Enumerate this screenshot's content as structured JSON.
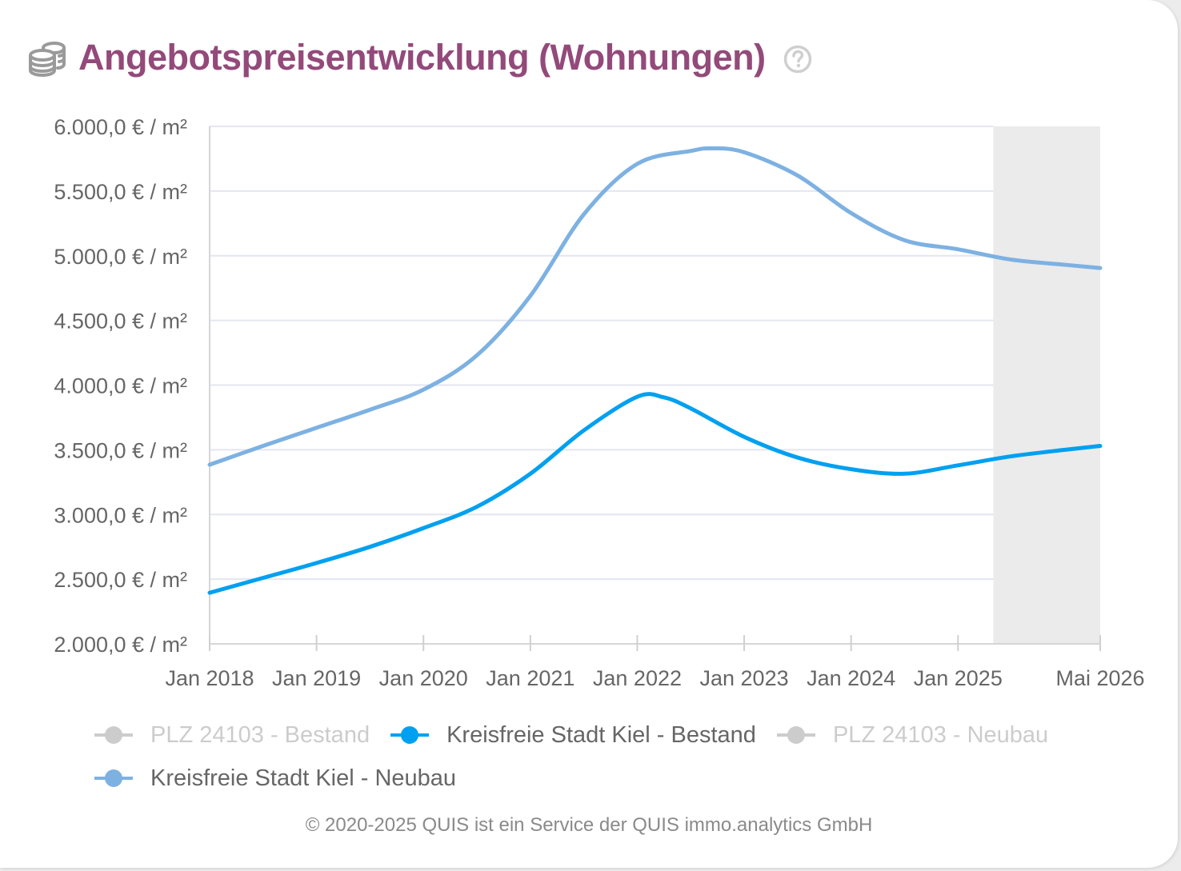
{
  "header": {
    "title": "Angebotspreisentwicklung (Wohnungen)",
    "icon": "coins-icon",
    "help_icon": "help-circle-icon",
    "title_color": "#934a7a"
  },
  "chart_data": {
    "type": "line",
    "title": "Angebotspreisentwicklung (Wohnungen)",
    "xlabel": "",
    "ylabel": "",
    "ylim": [
      2000,
      6000
    ],
    "y_ticks": [
      {
        "value": 6000,
        "label": "6.000,0 € / m²"
      },
      {
        "value": 5500,
        "label": "5.500,0 € / m²"
      },
      {
        "value": 5000,
        "label": "5.000,0 € / m²"
      },
      {
        "value": 4500,
        "label": "4.500,0 € / m²"
      },
      {
        "value": 4000,
        "label": "4.000,0 € / m²"
      },
      {
        "value": 3500,
        "label": "3.500,0 € / m²"
      },
      {
        "value": 3000,
        "label": "3.000,0 € / m²"
      },
      {
        "value": 2500,
        "label": "2.500,0 € / m²"
      },
      {
        "value": 2000,
        "label": "2.000,0 € / m²"
      }
    ],
    "xlim": [
      2018.0,
      2026.33
    ],
    "x_ticks": [
      {
        "value": 2018.0,
        "label": "Jan 2018"
      },
      {
        "value": 2019.0,
        "label": "Jan 2019"
      },
      {
        "value": 2020.0,
        "label": "Jan 2020"
      },
      {
        "value": 2021.0,
        "label": "Jan 2021"
      },
      {
        "value": 2022.0,
        "label": "Jan 2022"
      },
      {
        "value": 2023.0,
        "label": "Jan 2023"
      },
      {
        "value": 2024.0,
        "label": "Jan 2024"
      },
      {
        "value": 2025.0,
        "label": "Jan 2025"
      },
      {
        "value": 2026.33,
        "label": "Mai 2026"
      }
    ],
    "forecast_region": [
      2025.33,
      2026.33
    ],
    "forecast_color": "#ebebeb",
    "grid": true,
    "legend_position": "bottom",
    "series": [
      {
        "name": "PLZ 24103 - Bestand",
        "color": "#cccccc",
        "visible": false,
        "x": [],
        "values": []
      },
      {
        "name": "Kreisfreie Stadt Kiel - Bestand",
        "color": "#00a0f0",
        "visible": true,
        "x": [
          2018.0,
          2018.5,
          2019.0,
          2019.5,
          2020.0,
          2020.5,
          2021.0,
          2021.5,
          2022.0,
          2022.25,
          2022.5,
          2023.0,
          2023.5,
          2024.0,
          2024.5,
          2025.0,
          2025.5,
          2026.0,
          2026.33
        ],
        "values": [
          2395,
          2510,
          2625,
          2750,
          2895,
          3060,
          3315,
          3650,
          3910,
          3905,
          3820,
          3600,
          3440,
          3350,
          3315,
          3380,
          3450,
          3500,
          3530
        ]
      },
      {
        "name": "PLZ 24103 - Neubau",
        "color": "#cccccc",
        "visible": false,
        "x": [],
        "values": []
      },
      {
        "name": "Kreisfreie Stadt Kiel - Neubau",
        "color": "#7db1e2",
        "visible": true,
        "x": [
          2018.0,
          2018.5,
          2019.0,
          2019.5,
          2020.0,
          2020.5,
          2021.0,
          2021.5,
          2022.0,
          2022.5,
          2022.7,
          2023.0,
          2023.5,
          2024.0,
          2024.5,
          2025.0,
          2025.5,
          2026.0,
          2026.33
        ],
        "values": [
          3385,
          3530,
          3670,
          3810,
          3965,
          4230,
          4690,
          5320,
          5710,
          5810,
          5830,
          5800,
          5620,
          5330,
          5120,
          5050,
          4970,
          4930,
          4905
        ]
      }
    ]
  },
  "legend": {
    "items": [
      {
        "label": "PLZ 24103 - Bestand",
        "color": "#cccccc",
        "text_color": "#cccccc"
      },
      {
        "label": "Kreisfreie Stadt Kiel - Bestand",
        "color": "#00a0f0",
        "text_color": "#666666"
      },
      {
        "label": "PLZ 24103 - Neubau",
        "color": "#cccccc",
        "text_color": "#cccccc"
      },
      {
        "label": "Kreisfreie Stadt Kiel - Neubau",
        "color": "#7db1e2",
        "text_color": "#666666"
      }
    ]
  },
  "footer": {
    "text": "© 2020-2025 QUIS ist ein Service der QUIS immo.analytics GmbH"
  }
}
